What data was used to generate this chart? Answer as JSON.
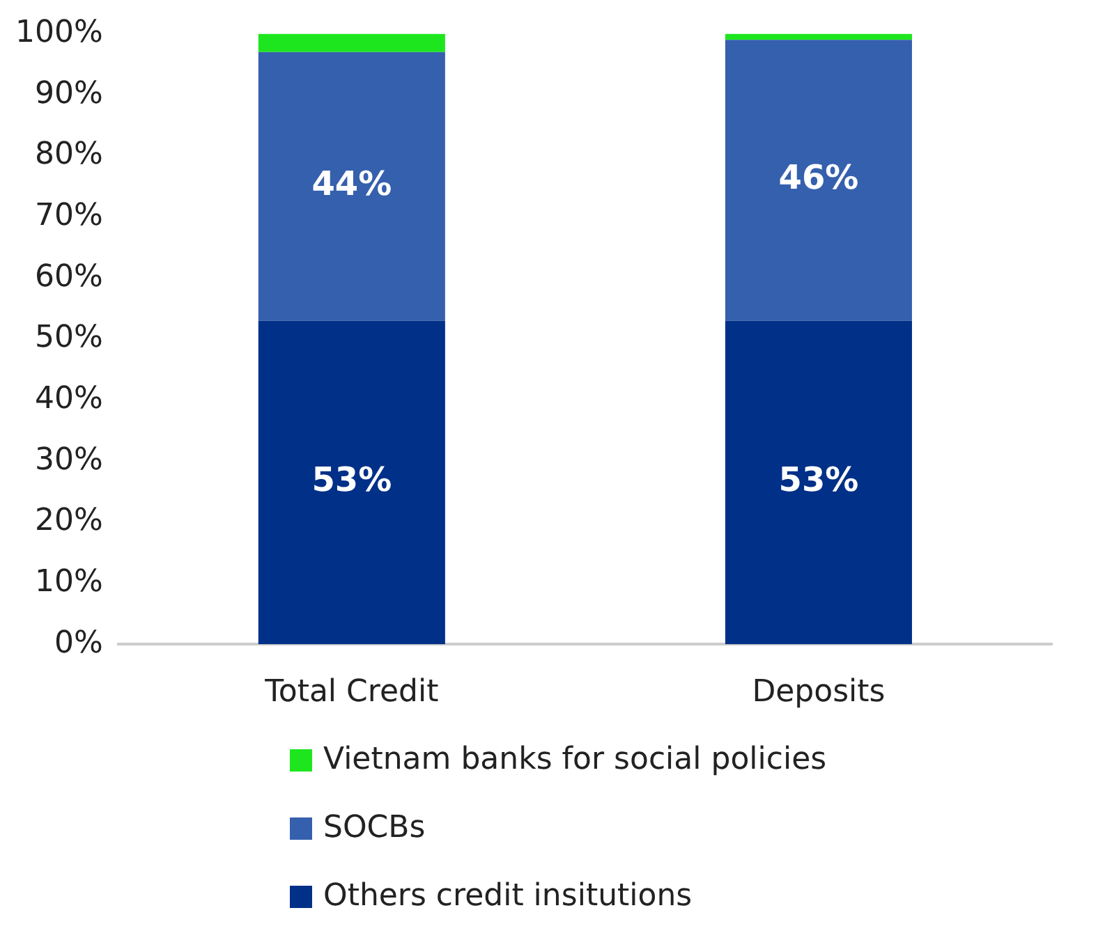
{
  "chart_data": {
    "type": "bar",
    "stacked": true,
    "categories": [
      "Total Credit",
      "Deposits"
    ],
    "series": [
      {
        "name": "Others credit insitutions",
        "color": "#003087",
        "values": [
          53,
          53
        ],
        "value_labels": [
          "53%",
          "53%"
        ]
      },
      {
        "name": "SOCBs",
        "color": "#3560ad",
        "values": [
          44,
          46
        ],
        "value_labels": [
          "44%",
          "46%"
        ]
      },
      {
        "name": "Vietnam banks for social policies",
        "color": "#1ee61e",
        "values": [
          3,
          1
        ],
        "value_labels": [
          null,
          null
        ]
      }
    ],
    "ylim": [
      0,
      100
    ],
    "yticks": [
      {
        "value": 0,
        "label": "0%"
      },
      {
        "value": 10,
        "label": "10%"
      },
      {
        "value": 20,
        "label": "20%"
      },
      {
        "value": 30,
        "label": "30%"
      },
      {
        "value": 40,
        "label": "40%"
      },
      {
        "value": 50,
        "label": "50%"
      },
      {
        "value": 60,
        "label": "60%"
      },
      {
        "value": 70,
        "label": "70%"
      },
      {
        "value": 80,
        "label": "80%"
      },
      {
        "value": 90,
        "label": "90%"
      },
      {
        "value": 100,
        "label": "100%"
      }
    ],
    "grid": false,
    "legend": "bottom"
  }
}
